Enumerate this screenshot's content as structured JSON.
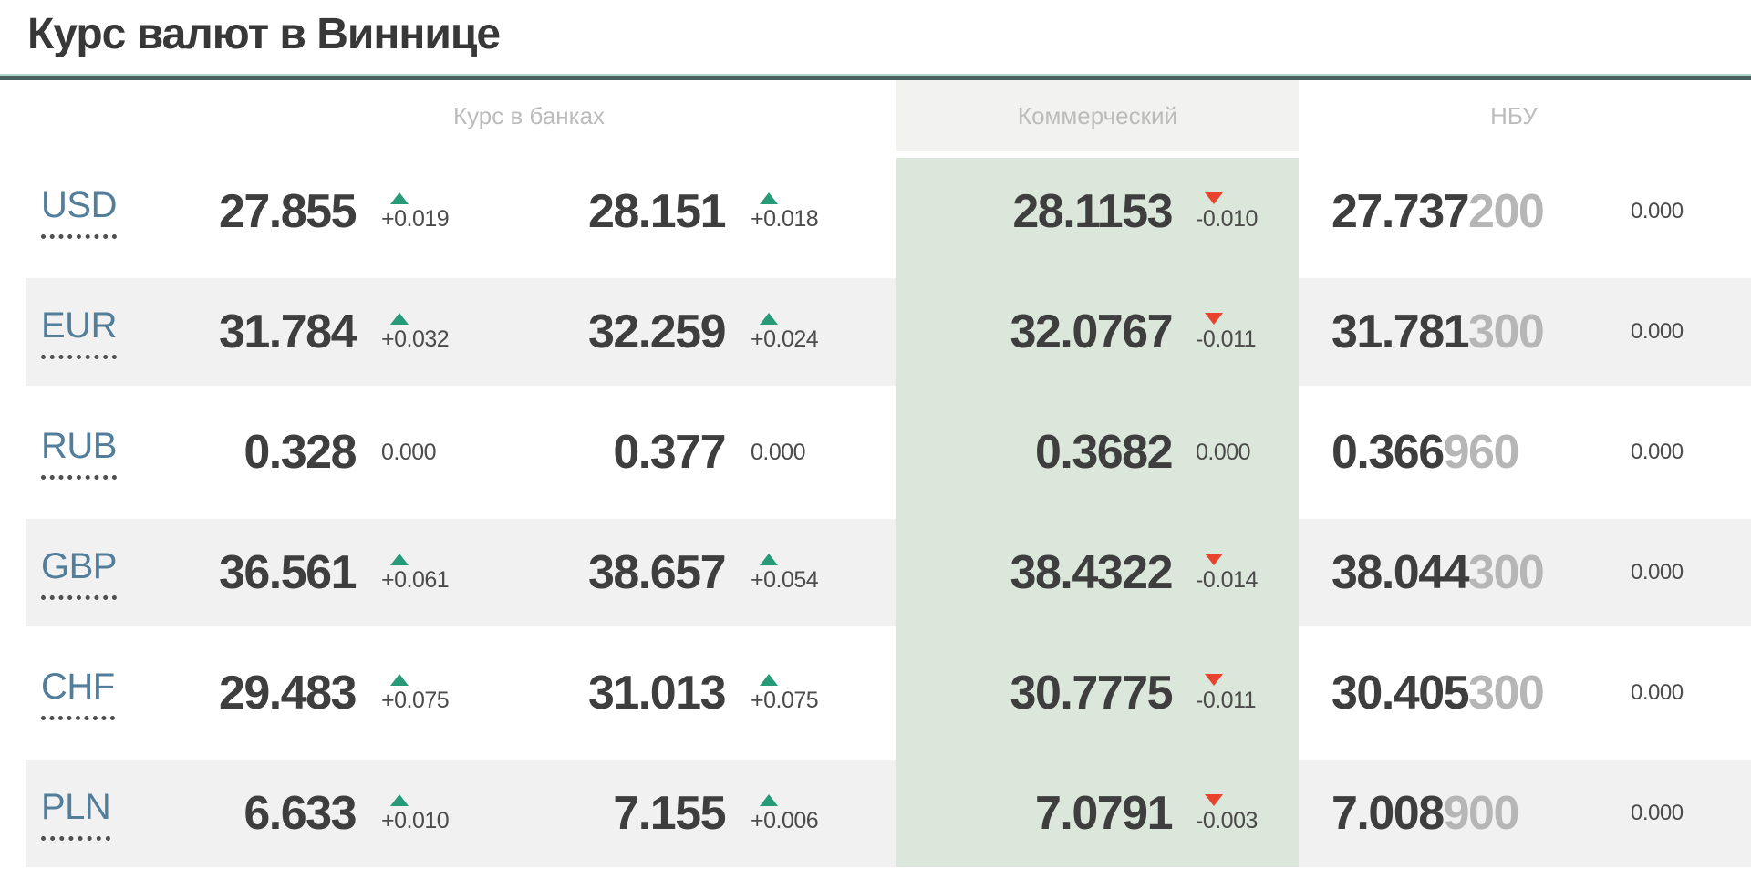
{
  "title": "Курс валют в Виннице",
  "headers": {
    "banks": "Курс в банках",
    "commercial": "Коммерческий",
    "nbu": "НБУ"
  },
  "rows": [
    {
      "code": "USD",
      "bank_buy": {
        "value": "27.855",
        "delta": "+0.019",
        "trend": "up"
      },
      "bank_sell": {
        "value": "28.151",
        "delta": "+0.018",
        "trend": "up"
      },
      "commercial": {
        "value": "28.1153",
        "delta": "-0.010",
        "trend": "down"
      },
      "nbu": {
        "value": "27.737",
        "value_faded": "200",
        "delta": "0.000",
        "trend": "flat"
      }
    },
    {
      "code": "EUR",
      "bank_buy": {
        "value": "31.784",
        "delta": "+0.032",
        "trend": "up"
      },
      "bank_sell": {
        "value": "32.259",
        "delta": "+0.024",
        "trend": "up"
      },
      "commercial": {
        "value": "32.0767",
        "delta": "-0.011",
        "trend": "down"
      },
      "nbu": {
        "value": "31.781",
        "value_faded": "300",
        "delta": "0.000",
        "trend": "flat"
      }
    },
    {
      "code": "RUB",
      "bank_buy": {
        "value": "0.328",
        "delta": "0.000",
        "trend": "flat"
      },
      "bank_sell": {
        "value": "0.377",
        "delta": "0.000",
        "trend": "flat"
      },
      "commercial": {
        "value": "0.3682",
        "delta": "0.000",
        "trend": "flat"
      },
      "nbu": {
        "value": "0.366",
        "value_faded": "960",
        "delta": "0.000",
        "trend": "flat"
      }
    },
    {
      "code": "GBP",
      "bank_buy": {
        "value": "36.561",
        "delta": "+0.061",
        "trend": "up"
      },
      "bank_sell": {
        "value": "38.657",
        "delta": "+0.054",
        "trend": "up"
      },
      "commercial": {
        "value": "38.4322",
        "delta": "-0.014",
        "trend": "down"
      },
      "nbu": {
        "value": "38.044",
        "value_faded": "300",
        "delta": "0.000",
        "trend": "flat"
      }
    },
    {
      "code": "CHF",
      "bank_buy": {
        "value": "29.483",
        "delta": "+0.075",
        "trend": "up"
      },
      "bank_sell": {
        "value": "31.013",
        "delta": "+0.075",
        "trend": "up"
      },
      "commercial": {
        "value": "30.7775",
        "delta": "-0.011",
        "trend": "down"
      },
      "nbu": {
        "value": "30.405",
        "value_faded": "300",
        "delta": "0.000",
        "trend": "flat"
      }
    },
    {
      "code": "PLN",
      "bank_buy": {
        "value": "6.633",
        "delta": "+0.010",
        "trend": "up"
      },
      "bank_sell": {
        "value": "7.155",
        "delta": "+0.006",
        "trend": "up"
      },
      "commercial": {
        "value": "7.0791",
        "delta": "-0.003",
        "trend": "down"
      },
      "nbu": {
        "value": "7.008",
        "value_faded": "900",
        "delta": "0.000",
        "trend": "flat"
      }
    }
  ],
  "icons": {
    "up": "triangle-up-icon",
    "down": "triangle-down-icon"
  },
  "colors": {
    "up": "#279b78",
    "down": "#e8432c",
    "accent_rule": "#45625f",
    "commercial_panel": "#dbe7da",
    "stripe": "#f1f1f1",
    "currency_link": "#527e9b"
  },
  "striped_row_indexes": [
    1,
    3,
    5
  ]
}
